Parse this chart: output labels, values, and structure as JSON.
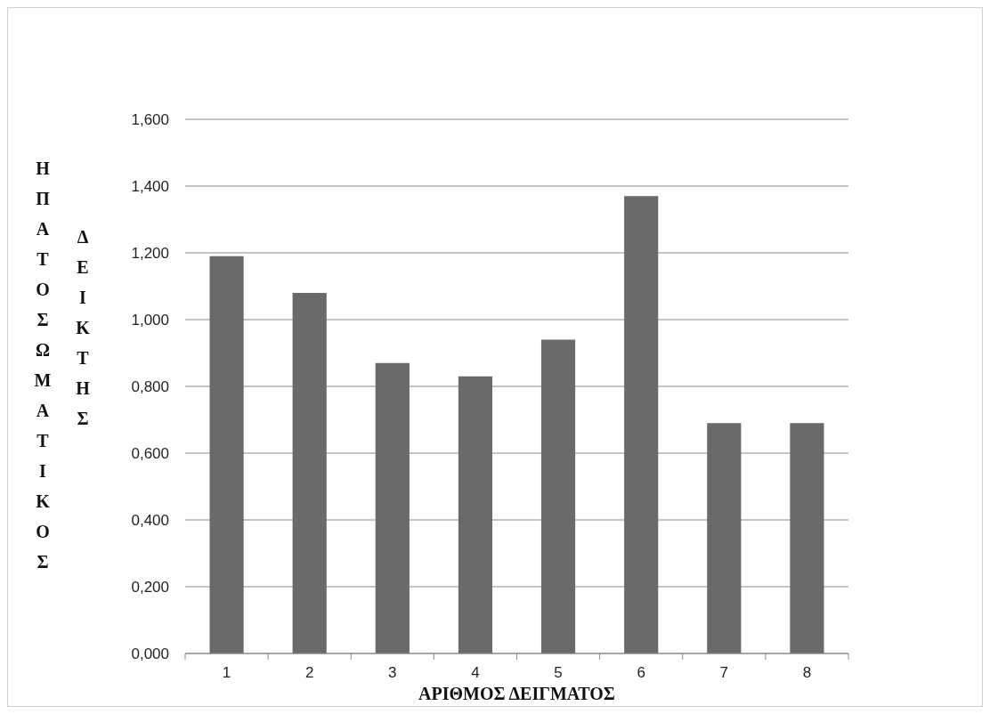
{
  "chart_data": {
    "type": "bar",
    "xlabel": "ΑΡΙΘΜΟΣ ΔΕΙΓΜΑΤΟΣ",
    "ylabel": "ΗΠΑΤΟΣΩΜΑΤΙΚΟΣ ΔΕΙΚΤΗΣ",
    "categories": [
      "1",
      "2",
      "3",
      "4",
      "5",
      "6",
      "7",
      "8"
    ],
    "values": [
      1.19,
      1.08,
      0.87,
      0.83,
      0.94,
      1.37,
      0.69,
      0.69
    ],
    "color": "#6a6a6a",
    "ylim": [
      0,
      1.6
    ],
    "yticks": [
      {
        "value": 0,
        "label": "0,000"
      },
      {
        "value": 0.2,
        "label": "0,200"
      },
      {
        "value": 0.4,
        "label": "0,400"
      },
      {
        "value": 0.6,
        "label": "0,600"
      },
      {
        "value": 0.8,
        "label": "0,800"
      },
      {
        "value": 1,
        "label": "1,000"
      },
      {
        "value": 1.2,
        "label": "1,200"
      },
      {
        "value": 1.4,
        "label": "1,400"
      },
      {
        "value": 1.6,
        "label": "1,600"
      }
    ],
    "grid": "y"
  }
}
